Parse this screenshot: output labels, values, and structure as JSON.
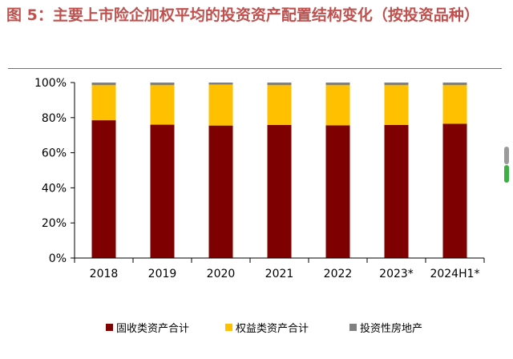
{
  "title": "图 5：主要上市险企加权平均的投资资产配置结构变化（按投资品种）",
  "chart_data": {
    "type": "bar",
    "stacked": true,
    "categories": [
      "2018",
      "2019",
      "2020",
      "2021",
      "2022",
      "2023*",
      "2024H1*"
    ],
    "series": [
      {
        "name": "固收类资产合计",
        "color": "#7f0000",
        "values": [
          78.5,
          76.0,
          75.5,
          75.8,
          75.6,
          75.8,
          76.5
        ]
      },
      {
        "name": "权益类资产合计",
        "color": "#ffc000",
        "values": [
          20.0,
          22.5,
          23.3,
          22.7,
          22.9,
          22.7,
          22.0
        ]
      },
      {
        "name": "投资性房地产",
        "color": "#808080",
        "values": [
          1.5,
          1.5,
          1.2,
          1.5,
          1.5,
          1.5,
          1.5
        ]
      }
    ],
    "ylim": [
      0,
      100
    ],
    "yticks": [
      "0%",
      "20%",
      "40%",
      "60%",
      "80%",
      "100%"
    ],
    "grid": false,
    "legend": "bottom"
  }
}
